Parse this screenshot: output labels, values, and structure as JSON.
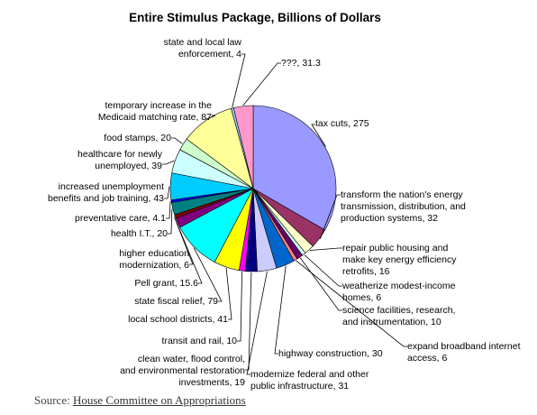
{
  "chart_data": {
    "type": "pie",
    "title": "Entire Stimulus Package, Billions of Dollars",
    "slices": [
      {
        "label": "tax cuts, 275",
        "name": "tax cuts",
        "value": 275,
        "color": "#9999ff"
      },
      {
        "label": "transform the nation's energy transmission, distribution, and production systems, 32",
        "name": "transform the nation's energy transmission, distribution, and production systems",
        "value": 32,
        "color": "#993366"
      },
      {
        "label": "repair public housing and make key energy efficiency retrofits, 16",
        "name": "repair public housing and make key energy efficiency retrofits",
        "value": 16,
        "color": "#ffffcc"
      },
      {
        "label": "weatherize modest-income homes, 6",
        "name": "weatherize modest-income homes",
        "value": 6,
        "color": "#ccffff"
      },
      {
        "label": "science facilities, research, and instrumentation, 10",
        "name": "science facilities, research, and instrumentation",
        "value": 10,
        "color": "#660066"
      },
      {
        "label": "expand broadband internet access, 6",
        "name": "expand broadband internet access",
        "value": 6,
        "color": "#ff8080"
      },
      {
        "label": "highway construction, 30",
        "name": "highway construction",
        "value": 30,
        "color": "#0066cc"
      },
      {
        "label": "modernize federal and other public infrastructure, 31",
        "name": "modernize federal and other public infrastructure",
        "value": 31,
        "color": "#ccccff"
      },
      {
        "label": "clean water, flood control, and environmental restoration investments, 19",
        "name": "clean water, flood control, and environmental restoration investments",
        "value": 19,
        "color": "#000080"
      },
      {
        "label": "transit and rail, 10",
        "name": "transit and rail",
        "value": 10,
        "color": "#ff00ff"
      },
      {
        "label": "local school districts, 41",
        "name": "local school districts",
        "value": 41,
        "color": "#ffff00"
      },
      {
        "label": "state fiscal relief, 79",
        "name": "state fiscal relief",
        "value": 79,
        "color": "#00ffff"
      },
      {
        "label": "Pell grant, 15.6",
        "name": "Pell grant",
        "value": 15.6,
        "color": "#800080"
      },
      {
        "label": "higher education modernization, 6",
        "name": "higher education modernization",
        "value": 6,
        "color": "#800000"
      },
      {
        "label": "health I.T., 20",
        "name": "health I.T.",
        "value": 20,
        "color": "#008080"
      },
      {
        "label": "preventative care, 4.1",
        "name": "preventative care",
        "value": 4.1,
        "color": "#0000ff"
      },
      {
        "label": "increased unemployment benefits and job training, 43",
        "name": "increased unemployment benefits and job training",
        "value": 43,
        "color": "#00ccff"
      },
      {
        "label": "healthcare for newly unemployed, 39",
        "name": "healthcare for newly unemployed",
        "value": 39,
        "color": "#ccffff"
      },
      {
        "label": "food stamps, 20",
        "name": "food stamps",
        "value": 20,
        "color": "#ccffcc"
      },
      {
        "label": "temporary increase in the Medicaid matching rate, 87",
        "name": "temporary increase in the Medicaid matching rate",
        "value": 87,
        "color": "#ffff99"
      },
      {
        "label": "state and local law enforcement, 4",
        "name": "state and local law enforcement",
        "value": 4,
        "color": "#99ccff"
      },
      {
        "label": "???, 31.3",
        "name": "???",
        "value": 31.3,
        "color": "#ff99cc"
      }
    ]
  },
  "source": {
    "prefix": "Source: ",
    "link_text": "House Committee on Appropriations"
  }
}
